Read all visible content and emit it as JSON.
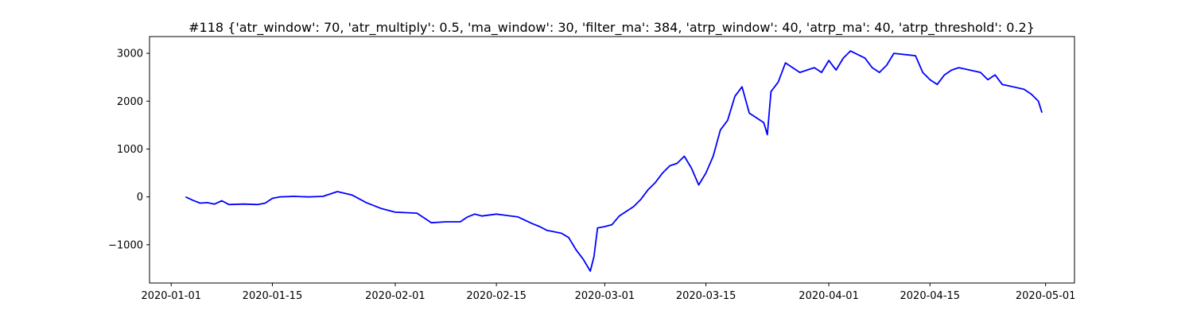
{
  "chart_data": {
    "type": "line",
    "title": "#118 {'atr_window': 70, 'atr_multiply': 0.5, 'ma_window': 30, 'filter_ma': 384, 'atrp_window': 40, 'atrp_ma': 40, 'atrp_threshold': 0.2}",
    "xlabel": "",
    "ylabel": "",
    "grid": false,
    "legend": false,
    "xlim": [
      "2019-12-29",
      "2020-05-05"
    ],
    "ylim": [
      -1800,
      3350
    ],
    "x_ticks": [
      "2020-01-01",
      "2020-01-15",
      "2020-02-01",
      "2020-02-15",
      "2020-03-01",
      "2020-03-15",
      "2020-04-01",
      "2020-04-15",
      "2020-05-01"
    ],
    "y_ticks": [
      -1000,
      0,
      1000,
      2000,
      3000
    ],
    "y_tick_labels": [
      "−1000",
      "0",
      "1000",
      "2000",
      "3000"
    ],
    "series": [
      {
        "color": "#0000ff",
        "points": [
          [
            "2020-01-03",
            0
          ],
          [
            "2020-01-04",
            -70
          ],
          [
            "2020-01-05",
            -130
          ],
          [
            "2020-01-06",
            -120
          ],
          [
            "2020-01-07",
            -150
          ],
          [
            "2020-01-08",
            -80
          ],
          [
            "2020-01-09",
            -160
          ],
          [
            "2020-01-11",
            -150
          ],
          [
            "2020-01-13",
            -160
          ],
          [
            "2020-01-14",
            -130
          ],
          [
            "2020-01-15",
            -30
          ],
          [
            "2020-01-16",
            0
          ],
          [
            "2020-01-18",
            10
          ],
          [
            "2020-01-20",
            0
          ],
          [
            "2020-01-22",
            10
          ],
          [
            "2020-01-24",
            110
          ],
          [
            "2020-01-26",
            40
          ],
          [
            "2020-01-28",
            -120
          ],
          [
            "2020-01-30",
            -240
          ],
          [
            "2020-02-01",
            -320
          ],
          [
            "2020-02-04",
            -340
          ],
          [
            "2020-02-05",
            -440
          ],
          [
            "2020-02-06",
            -540
          ],
          [
            "2020-02-08",
            -520
          ],
          [
            "2020-02-10",
            -520
          ],
          [
            "2020-02-11",
            -420
          ],
          [
            "2020-02-12",
            -360
          ],
          [
            "2020-02-13",
            -400
          ],
          [
            "2020-02-15",
            -360
          ],
          [
            "2020-02-18",
            -420
          ],
          [
            "2020-02-20",
            -560
          ],
          [
            "2020-02-21",
            -620
          ],
          [
            "2020-02-22",
            -700
          ],
          [
            "2020-02-24",
            -760
          ],
          [
            "2020-02-25",
            -850
          ],
          [
            "2020-02-26",
            -1100
          ],
          [
            "2020-02-27",
            -1300
          ],
          [
            "2020-02-28",
            -1550
          ],
          [
            "2020-02-28T12:00",
            -1250
          ],
          [
            "2020-02-29",
            -650
          ],
          [
            "2020-03-01",
            -620
          ],
          [
            "2020-03-02",
            -580
          ],
          [
            "2020-03-03",
            -400
          ],
          [
            "2020-03-04",
            -300
          ],
          [
            "2020-03-05",
            -200
          ],
          [
            "2020-03-06",
            -50
          ],
          [
            "2020-03-07",
            150
          ],
          [
            "2020-03-08",
            300
          ],
          [
            "2020-03-09",
            500
          ],
          [
            "2020-03-10",
            650
          ],
          [
            "2020-03-11",
            700
          ],
          [
            "2020-03-12",
            850
          ],
          [
            "2020-03-13",
            600
          ],
          [
            "2020-03-14",
            250
          ],
          [
            "2020-03-15",
            500
          ],
          [
            "2020-03-16",
            850
          ],
          [
            "2020-03-17",
            1400
          ],
          [
            "2020-03-18",
            1600
          ],
          [
            "2020-03-19",
            2100
          ],
          [
            "2020-03-20",
            2300
          ],
          [
            "2020-03-21",
            1750
          ],
          [
            "2020-03-22",
            1650
          ],
          [
            "2020-03-23",
            1550
          ],
          [
            "2020-03-23T12:00",
            1300
          ],
          [
            "2020-03-24",
            2200
          ],
          [
            "2020-03-25",
            2400
          ],
          [
            "2020-03-26",
            2800
          ],
          [
            "2020-03-27",
            2700
          ],
          [
            "2020-03-28",
            2600
          ],
          [
            "2020-03-29",
            2650
          ],
          [
            "2020-03-30",
            2700
          ],
          [
            "2020-03-31",
            2600
          ],
          [
            "2020-04-01",
            2850
          ],
          [
            "2020-04-02",
            2650
          ],
          [
            "2020-04-03",
            2900
          ],
          [
            "2020-04-04",
            3050
          ],
          [
            "2020-04-06",
            2900
          ],
          [
            "2020-04-07",
            2700
          ],
          [
            "2020-04-08",
            2600
          ],
          [
            "2020-04-09",
            2750
          ],
          [
            "2020-04-10",
            3000
          ],
          [
            "2020-04-13",
            2950
          ],
          [
            "2020-04-14",
            2600
          ],
          [
            "2020-04-15",
            2450
          ],
          [
            "2020-04-16",
            2350
          ],
          [
            "2020-04-17",
            2550
          ],
          [
            "2020-04-18",
            2650
          ],
          [
            "2020-04-19",
            2700
          ],
          [
            "2020-04-22",
            2600
          ],
          [
            "2020-04-23",
            2450
          ],
          [
            "2020-04-24",
            2550
          ],
          [
            "2020-04-25",
            2350
          ],
          [
            "2020-04-28",
            2250
          ],
          [
            "2020-04-29",
            2150
          ],
          [
            "2020-04-30",
            2000
          ],
          [
            "2020-04-30T12:00",
            1760
          ]
        ]
      }
    ]
  }
}
